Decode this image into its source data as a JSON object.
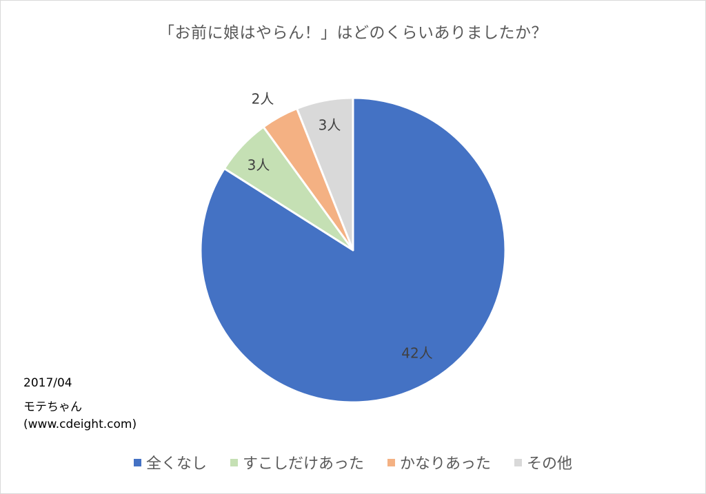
{
  "chart_data": {
    "type": "pie",
    "title": "「お前に娘はやらん！」はどのくらいありましたか？",
    "categories": [
      "全くなし",
      "すこしだけあった",
      "かなりあった",
      "その他"
    ],
    "values": [
      42,
      3,
      2,
      3
    ],
    "data_labels": [
      "42人",
      "3人",
      "2人",
      "3人"
    ],
    "unit": "人",
    "colors": [
      "#4472c4",
      "#c5e0b4",
      "#f4b183",
      "#d9d9d9"
    ],
    "start_angle_deg": 0,
    "direction": "clockwise",
    "legend_position": "bottom"
  },
  "title": "「お前に娘はやらん！」はどのくらいありましたか？",
  "labels": {
    "slice0": "42人",
    "slice1": "3人",
    "slice2": "2人",
    "slice3": "3人"
  },
  "legend": {
    "item0": "全くなし",
    "item1": "すこしだけあった",
    "item2": "かなりあった",
    "item3": "その他"
  },
  "note": {
    "date": "2017/04",
    "source": "モテちゃん",
    "url": "(www.cdeight.com)"
  }
}
